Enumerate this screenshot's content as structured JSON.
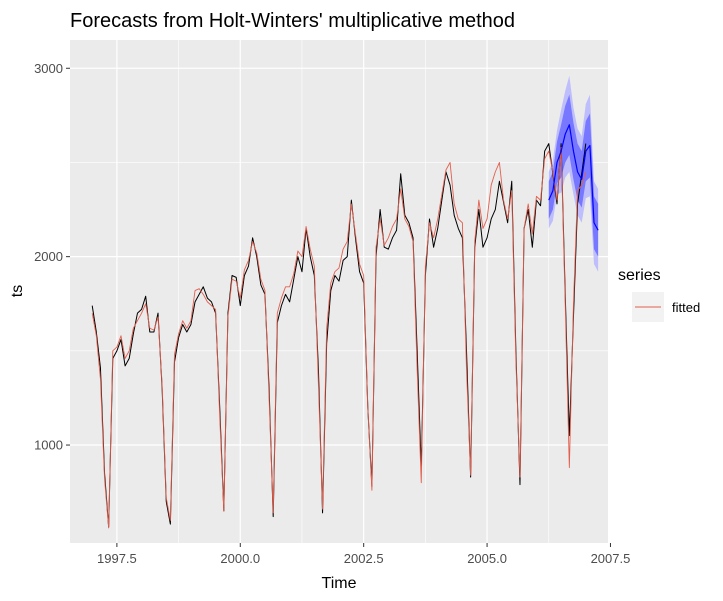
{
  "chart_data": {
    "type": "line",
    "title": "Forecasts from Holt-Winters' multiplicative method",
    "xlabel": "Time",
    "ylabel": "ts",
    "xlim": [
      1996.55,
      2007.45
    ],
    "ylim": [
      480,
      3150
    ],
    "xticks": [
      1997.5,
      2000.0,
      2002.5,
      2005.0,
      2007.5
    ],
    "xtick_labels": [
      "1997.5",
      "2000.0",
      "2002.5",
      "2005.0",
      "2007.5"
    ],
    "yticks": [
      1000,
      2000,
      3000
    ],
    "ytick_labels": [
      "1000",
      "2000",
      "3000"
    ],
    "grid": true,
    "legend": {
      "title": "series",
      "position": "right",
      "entries": [
        "fitted"
      ]
    },
    "colors": {
      "panel_bg": "#ebebeb",
      "grid": "#ffffff",
      "observed": "#000000",
      "fitted": "#e2604f",
      "forecast": "#0000ff",
      "pi80": "#6b6bff",
      "pi95": "#b6b6ff"
    },
    "series": [
      {
        "key": "observed",
        "x_start": 1997.0,
        "frequency": 12,
        "values": [
          1740,
          1600,
          1410,
          850,
          565,
          1460,
          1500,
          1560,
          1420,
          1460,
          1590,
          1700,
          1720,
          1790,
          1600,
          1600,
          1700,
          1300,
          700,
          580,
          1440,
          1570,
          1640,
          1600,
          1640,
          1760,
          1800,
          1840,
          1780,
          1760,
          1700,
          1200,
          650,
          1700,
          1900,
          1890,
          1740,
          1900,
          1950,
          2100,
          2000,
          1850,
          1800,
          1300,
          620,
          1650,
          1740,
          1800,
          1760,
          1880,
          2000,
          1920,
          2150,
          2000,
          1900,
          1400,
          640,
          1540,
          1820,
          1900,
          1870,
          1980,
          2000,
          2300,
          2100,
          1920,
          1860,
          1200,
          780,
          2000,
          2250,
          2050,
          2040,
          2100,
          2140,
          2440,
          2220,
          2180,
          2100,
          1500,
          880,
          1900,
          2200,
          2050,
          2150,
          2300,
          2450,
          2380,
          2220,
          2150,
          2100,
          1500,
          830,
          2050,
          2250,
          2050,
          2100,
          2200,
          2250,
          2400,
          2290,
          2180,
          2400,
          1500,
          790,
          2150,
          2250,
          2050,
          2300,
          2270,
          2560,
          2600,
          2440,
          2280,
          2600,
          1800,
          1050,
          1680,
          2280,
          2440,
          2600
        ]
      },
      {
        "key": "fitted",
        "x_start": 1997.0,
        "frequency": 12,
        "values": [
          1700,
          1580,
          1350,
          820,
          560,
          1500,
          1520,
          1580,
          1460,
          1500,
          1620,
          1660,
          1700,
          1750,
          1620,
          1610,
          1680,
          1320,
          720,
          600,
          1480,
          1590,
          1660,
          1620,
          1660,
          1820,
          1830,
          1800,
          1760,
          1740,
          1720,
          1150,
          650,
          1680,
          1880,
          1870,
          1780,
          1930,
          1980,
          2080,
          2020,
          1880,
          1820,
          1250,
          640,
          1700,
          1780,
          1840,
          1840,
          1910,
          2030,
          2000,
          2160,
          2040,
          1950,
          1320,
          660,
          1620,
          1860,
          1920,
          1940,
          2040,
          2080,
          2280,
          2120,
          1960,
          1900,
          1200,
          760,
          2050,
          2200,
          2060,
          2100,
          2160,
          2200,
          2360,
          2200,
          2160,
          2080,
          1400,
          800,
          1950,
          2180,
          2100,
          2200,
          2330,
          2460,
          2500,
          2280,
          2200,
          2180,
          1400,
          840,
          2080,
          2300,
          2150,
          2200,
          2380,
          2450,
          2500,
          2300,
          2200,
          2350,
          1450,
          830,
          2150,
          2280,
          2120,
          2320,
          2300,
          2520,
          2560,
          2450,
          2300,
          2580,
          1750,
          880,
          1750,
          2350,
          2380,
          2450
        ]
      },
      {
        "key": "forecast",
        "x_start": 2006.25,
        "frequency": 12,
        "values": [
          2300,
          2350,
          2500,
          2560,
          2650,
          2700,
          2560,
          2450,
          2410,
          2560,
          2590,
          2180,
          2140
        ],
        "lo80": [
          2200,
          2250,
          2390,
          2420,
          2500,
          2540,
          2410,
          2300,
          2260,
          2400,
          2420,
          2040,
          2000
        ],
        "hi80": [
          2400,
          2450,
          2610,
          2700,
          2800,
          2860,
          2710,
          2600,
          2560,
          2720,
          2760,
          2320,
          2280
        ],
        "lo95": [
          2150,
          2190,
          2330,
          2340,
          2420,
          2450,
          2330,
          2220,
          2180,
          2310,
          2320,
          1960,
          1920
        ],
        "hi95": [
          2450,
          2510,
          2670,
          2780,
          2880,
          2960,
          2790,
          2680,
          2640,
          2810,
          2860,
          2400,
          2360
        ]
      }
    ]
  }
}
